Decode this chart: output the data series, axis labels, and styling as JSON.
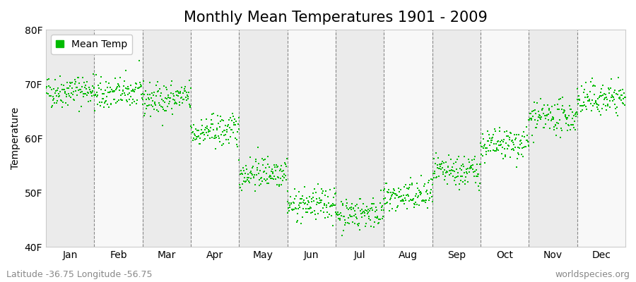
{
  "title": "Monthly Mean Temperatures 1901 - 2009",
  "ylabel": "Temperature",
  "ylim": [
    40,
    80
  ],
  "yticks": [
    40,
    50,
    60,
    70,
    80
  ],
  "ytick_labels": [
    "40F",
    "50F",
    "60F",
    "70F",
    "80F"
  ],
  "months": [
    "Jan",
    "Feb",
    "Mar",
    "Apr",
    "May",
    "Jun",
    "Jul",
    "Aug",
    "Sep",
    "Oct",
    "Nov",
    "Dec"
  ],
  "month_means": [
    68.5,
    68.0,
    67.0,
    61.0,
    53.5,
    47.5,
    46.0,
    49.0,
    53.5,
    58.5,
    63.5,
    67.0
  ],
  "month_stds": [
    1.5,
    1.5,
    1.5,
    1.5,
    1.5,
    1.5,
    1.5,
    1.5,
    1.5,
    1.5,
    1.5,
    1.5
  ],
  "trend_per_century": 0.5,
  "n_years": 109,
  "start_year": 1901,
  "dot_color": "#00bb00",
  "dot_size": 3,
  "background_color": "#ffffff",
  "plot_bg_color": "#ffffff",
  "band_color_odd": "#ebebeb",
  "band_color_even": "#f8f8f8",
  "title_fontsize": 15,
  "axis_fontsize": 10,
  "tick_fontsize": 10,
  "legend_label": "Mean Temp",
  "footer_left": "Latitude -36.75 Longitude -56.75",
  "footer_right": "worldspecies.org",
  "footer_fontsize": 9,
  "grid_color": "#888888",
  "seed": 42
}
